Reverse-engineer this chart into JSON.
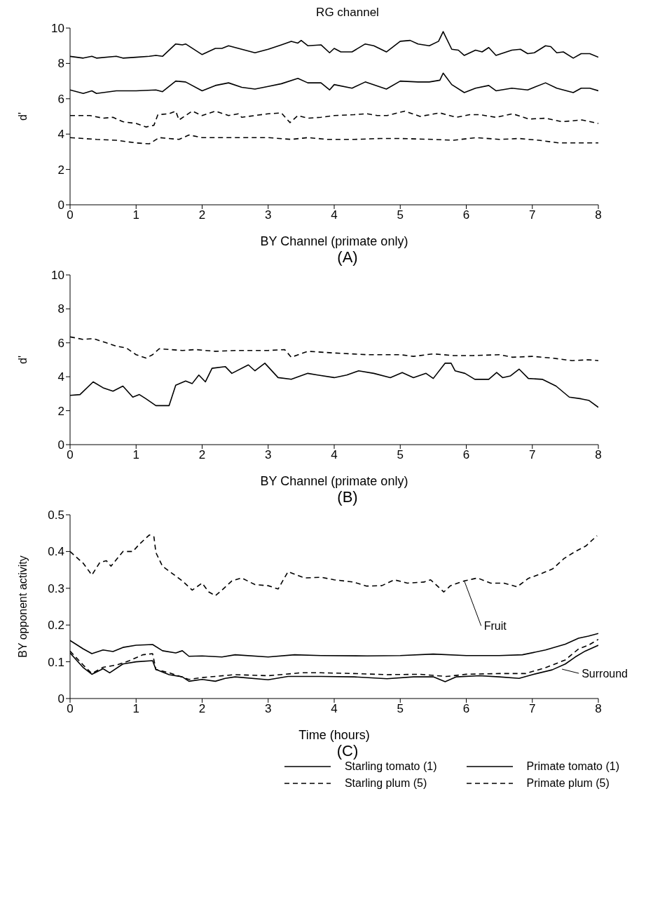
{
  "chart_data": [
    {
      "type": "line",
      "title": "RG channel",
      "xlabel": "BY Channel (primate only)",
      "ylabel": "d'",
      "annotations": [
        "(A)"
      ],
      "xlim": [
        0,
        8
      ],
      "xticks": [
        0,
        1,
        2,
        3,
        4,
        5,
        6,
        7,
        8
      ],
      "ylim": [
        0,
        10
      ],
      "yticks": [
        0,
        2,
        4,
        6,
        8,
        10
      ],
      "legend": "bottom",
      "marker": "none",
      "series": [
        {
          "name": "Starling tomato (1)",
          "color": "#000000",
          "line_style": "solid",
          "x": [
            0,
            0.2,
            0.33,
            0.4,
            0.7,
            0.8,
            1.0,
            1.2,
            1.3,
            1.4,
            1.6,
            1.7,
            1.75,
            2.0,
            2.2,
            2.3,
            2.4,
            2.6,
            2.8,
            3.0,
            3.2,
            3.35,
            3.45,
            3.5,
            3.6,
            3.8,
            3.93,
            4.0,
            4.1,
            4.27,
            4.47,
            4.6,
            4.79,
            5.0,
            5.15,
            5.27,
            5.44,
            5.58,
            5.65,
            5.78,
            5.88,
            5.97,
            6.14,
            6.24,
            6.34,
            6.45,
            6.69,
            6.82,
            6.93,
            7.03,
            7.2,
            7.28,
            7.37,
            7.47,
            7.62,
            7.74,
            7.87,
            8.0
          ],
          "values": [
            8.4,
            8.3,
            8.4,
            8.3,
            8.4,
            8.3,
            8.35,
            8.4,
            8.45,
            8.4,
            9.1,
            9.05,
            9.1,
            8.5,
            8.85,
            8.85,
            9.0,
            8.8,
            8.6,
            8.8,
            9.05,
            9.25,
            9.15,
            9.3,
            9.0,
            9.05,
            8.6,
            8.85,
            8.65,
            8.65,
            9.1,
            9.0,
            8.65,
            9.25,
            9.3,
            9.1,
            9.0,
            9.25,
            9.8,
            8.8,
            8.75,
            8.45,
            8.75,
            8.65,
            8.9,
            8.45,
            8.75,
            8.8,
            8.55,
            8.6,
            9.0,
            8.95,
            8.6,
            8.65,
            8.3,
            8.55,
            8.55,
            8.35
          ]
        },
        {
          "name": "Primate tomato (1)",
          "color": "#000000",
          "line_style": "solid",
          "x": [
            0,
            0.2,
            0.33,
            0.4,
            0.7,
            1.0,
            1.3,
            1.4,
            1.6,
            1.75,
            2.0,
            2.2,
            2.4,
            2.6,
            2.8,
            3.0,
            3.2,
            3.45,
            3.6,
            3.8,
            3.93,
            4.0,
            4.27,
            4.47,
            4.79,
            5.0,
            5.27,
            5.44,
            5.6,
            5.65,
            5.78,
            5.97,
            6.14,
            6.34,
            6.45,
            6.69,
            6.93,
            7.2,
            7.37,
            7.62,
            7.74,
            7.87,
            8.0
          ],
          "values": [
            6.5,
            6.3,
            6.45,
            6.3,
            6.45,
            6.45,
            6.5,
            6.4,
            7.0,
            6.95,
            6.45,
            6.75,
            6.9,
            6.65,
            6.55,
            6.7,
            6.85,
            7.15,
            6.9,
            6.9,
            6.5,
            6.8,
            6.6,
            6.95,
            6.55,
            7.0,
            6.95,
            6.95,
            7.05,
            7.45,
            6.8,
            6.35,
            6.6,
            6.75,
            6.45,
            6.6,
            6.5,
            6.9,
            6.6,
            6.35,
            6.6,
            6.6,
            6.45
          ]
        },
        {
          "name": "Starling plum (5)",
          "color": "#000000",
          "line_style": "dashed",
          "x": [
            0,
            0.3,
            0.5,
            0.65,
            0.8,
            1.0,
            1.15,
            1.27,
            1.33,
            1.5,
            1.6,
            1.65,
            1.85,
            2.0,
            2.2,
            2.4,
            2.55,
            2.6,
            3.0,
            3.2,
            3.33,
            3.45,
            3.6,
            3.8,
            4.0,
            4.3,
            4.5,
            4.65,
            4.8,
            5.07,
            5.3,
            5.6,
            5.85,
            6.05,
            6.2,
            6.45,
            6.7,
            6.95,
            7.2,
            7.45,
            7.75,
            8.0
          ],
          "values": [
            5.05,
            5.05,
            4.9,
            4.95,
            4.7,
            4.6,
            4.4,
            4.5,
            5.1,
            5.15,
            5.3,
            4.8,
            5.3,
            5.05,
            5.3,
            5.05,
            5.15,
            4.95,
            5.15,
            5.2,
            4.65,
            5.05,
            4.9,
            4.95,
            5.05,
            5.1,
            5.15,
            5.05,
            5.05,
            5.3,
            5.0,
            5.2,
            4.95,
            5.1,
            5.1,
            4.95,
            5.15,
            4.85,
            4.9,
            4.7,
            4.8,
            4.6
          ]
        },
        {
          "name": "Primate plum (5)",
          "color": "#000000",
          "line_style": "dashed",
          "x": [
            0,
            0.4,
            0.7,
            1.0,
            1.2,
            1.35,
            1.65,
            1.8,
            2.0,
            2.5,
            3.0,
            3.35,
            3.6,
            3.9,
            4.3,
            4.7,
            5.0,
            5.5,
            5.8,
            6.15,
            6.5,
            6.8,
            7.1,
            7.4,
            7.7,
            8.0
          ],
          "values": [
            3.8,
            3.7,
            3.65,
            3.5,
            3.45,
            3.8,
            3.7,
            3.95,
            3.8,
            3.8,
            3.8,
            3.7,
            3.8,
            3.7,
            3.7,
            3.75,
            3.75,
            3.7,
            3.65,
            3.8,
            3.7,
            3.75,
            3.65,
            3.5,
            3.5,
            3.5
          ]
        }
      ]
    },
    {
      "type": "line",
      "xlabel": "BY Channel (primate only)",
      "ylabel": "d'",
      "annotations": [
        "(B)"
      ],
      "xlim": [
        0,
        8
      ],
      "xticks": [
        0,
        1,
        2,
        3,
        4,
        5,
        6,
        7,
        8
      ],
      "ylim": [
        0,
        10
      ],
      "yticks": [
        0,
        2,
        4,
        6,
        8,
        10
      ],
      "marker": "none",
      "series": [
        {
          "color": "#000000",
          "line_style": "dashed",
          "x": [
            0,
            0.2,
            0.35,
            0.55,
            0.7,
            0.85,
            1.0,
            1.15,
            1.25,
            1.35,
            1.7,
            1.9,
            2.2,
            2.5,
            3.0,
            3.25,
            3.35,
            3.6,
            4.0,
            4.5,
            5.0,
            5.2,
            5.5,
            5.8,
            6.1,
            6.5,
            6.7,
            7.0,
            7.3,
            7.6,
            7.85,
            8.0
          ],
          "values": [
            6.35,
            6.2,
            6.25,
            6.0,
            5.8,
            5.7,
            5.3,
            5.1,
            5.3,
            5.65,
            5.55,
            5.6,
            5.5,
            5.55,
            5.55,
            5.6,
            5.15,
            5.5,
            5.4,
            5.3,
            5.3,
            5.2,
            5.35,
            5.25,
            5.25,
            5.3,
            5.15,
            5.2,
            5.1,
            4.95,
            5.0,
            4.95
          ]
        },
        {
          "color": "#000000",
          "line_style": "solid",
          "x": [
            0,
            0.15,
            0.35,
            0.5,
            0.65,
            0.8,
            0.95,
            1.05,
            1.15,
            1.3,
            1.5,
            1.6,
            1.75,
            1.85,
            1.95,
            2.05,
            2.15,
            2.35,
            2.45,
            2.7,
            2.8,
            2.95,
            3.15,
            3.35,
            3.6,
            3.75,
            4.0,
            4.19,
            4.37,
            4.6,
            4.85,
            5.03,
            5.2,
            5.39,
            5.5,
            5.68,
            5.77,
            5.83,
            5.98,
            6.13,
            6.34,
            6.46,
            6.55,
            6.67,
            6.8,
            6.94,
            7.15,
            7.36,
            7.56,
            7.74,
            7.86,
            8.0
          ],
          "values": [
            2.9,
            2.95,
            3.7,
            3.35,
            3.15,
            3.45,
            2.8,
            2.95,
            2.7,
            2.3,
            2.3,
            3.5,
            3.75,
            3.6,
            4.1,
            3.7,
            4.5,
            4.6,
            4.2,
            4.7,
            4.35,
            4.8,
            3.95,
            3.85,
            4.2,
            4.1,
            3.95,
            4.1,
            4.35,
            4.2,
            3.95,
            4.25,
            3.95,
            4.2,
            3.9,
            4.8,
            4.8,
            4.35,
            4.2,
            3.85,
            3.85,
            4.25,
            3.95,
            4.05,
            4.45,
            3.9,
            3.85,
            3.45,
            2.8,
            2.7,
            2.6,
            2.2
          ]
        }
      ]
    },
    {
      "type": "line",
      "xlabel": "Time (hours)",
      "ylabel": "BY opponent activity",
      "xlim": [
        0,
        8
      ],
      "xticks": [
        0,
        1,
        2,
        3,
        4,
        5,
        6,
        7,
        8
      ],
      "ylim": [
        0,
        0.5
      ],
      "yticks": [
        0,
        0.1,
        0.2,
        0.3,
        0.4,
        0.5
      ],
      "marker": "none",
      "annotations": [
        {
          "text": "Fruit",
          "x": 5.97,
          "y": 0.32
        },
        {
          "text": "Surround",
          "x": 7.45,
          "y": 0.08
        },
        "(C)"
      ],
      "series": [
        {
          "color": "#000000",
          "line_style": "dashed",
          "x": [
            0,
            0.2,
            0.33,
            0.45,
            0.55,
            0.62,
            0.8,
            0.95,
            1.05,
            1.2,
            1.27,
            1.3,
            1.4,
            1.55,
            1.7,
            1.85,
            2.0,
            2.1,
            2.2,
            2.3,
            2.45,
            2.6,
            2.8,
            3.0,
            3.15,
            3.3,
            3.55,
            3.8,
            4.0,
            4.29,
            4.49,
            4.72,
            4.91,
            5.11,
            5.36,
            5.46,
            5.66,
            5.76,
            5.97,
            6.17,
            6.37,
            6.57,
            6.77,
            6.94,
            7.14,
            7.31,
            7.48,
            7.65,
            7.81,
            7.98
          ],
          "values": [
            0.4,
            0.368,
            0.336,
            0.37,
            0.375,
            0.36,
            0.4,
            0.4,
            0.42,
            0.445,
            0.44,
            0.397,
            0.36,
            0.34,
            0.32,
            0.295,
            0.314,
            0.29,
            0.28,
            0.295,
            0.32,
            0.328,
            0.31,
            0.307,
            0.298,
            0.345,
            0.328,
            0.33,
            0.323,
            0.317,
            0.306,
            0.307,
            0.323,
            0.314,
            0.317,
            0.323,
            0.29,
            0.307,
            0.32,
            0.328,
            0.314,
            0.314,
            0.304,
            0.327,
            0.34,
            0.353,
            0.381,
            0.4,
            0.415,
            0.443
          ]
        },
        {
          "color": "#000000",
          "line_style": "solid",
          "x": [
            0,
            0.2,
            0.33,
            0.5,
            0.65,
            0.8,
            1.0,
            1.25,
            1.4,
            1.6,
            1.7,
            1.8,
            2.0,
            2.3,
            2.5,
            3.0,
            3.4,
            3.8,
            4.5,
            5.0,
            5.5,
            6.0,
            6.5,
            6.85,
            7.2,
            7.5,
            7.7,
            7.85,
            8.0
          ],
          "values": [
            0.158,
            0.135,
            0.122,
            0.132,
            0.128,
            0.139,
            0.145,
            0.147,
            0.13,
            0.124,
            0.13,
            0.115,
            0.116,
            0.113,
            0.119,
            0.113,
            0.119,
            0.117,
            0.116,
            0.117,
            0.121,
            0.117,
            0.117,
            0.119,
            0.132,
            0.148,
            0.164,
            0.17,
            0.177
          ]
        },
        {
          "color": "#000000",
          "line_style": "solid",
          "x": [
            0,
            0.2,
            0.33,
            0.5,
            0.6,
            0.8,
            1.0,
            1.25,
            1.3,
            1.5,
            1.7,
            1.8,
            2.0,
            2.2,
            2.35,
            2.5,
            3.0,
            3.3,
            3.8,
            4.3,
            4.8,
            5.2,
            5.5,
            5.68,
            5.85,
            6.2,
            6.5,
            6.8,
            7.0,
            7.3,
            7.5,
            7.65,
            7.8,
            8.0
          ],
          "values": [
            0.124,
            0.084,
            0.066,
            0.081,
            0.07,
            0.094,
            0.1,
            0.103,
            0.079,
            0.065,
            0.059,
            0.047,
            0.052,
            0.047,
            0.055,
            0.059,
            0.051,
            0.06,
            0.06,
            0.059,
            0.054,
            0.059,
            0.059,
            0.046,
            0.059,
            0.062,
            0.059,
            0.055,
            0.065,
            0.078,
            0.094,
            0.113,
            0.129,
            0.145
          ]
        },
        {
          "color": "#000000",
          "line_style": "dashed",
          "x": [
            0,
            0.2,
            0.33,
            0.5,
            0.7,
            0.9,
            1.1,
            1.25,
            1.3,
            1.5,
            1.8,
            2.0,
            2.5,
            3.0,
            3.5,
            3.8,
            4.3,
            4.8,
            5.3,
            5.7,
            6.0,
            6.5,
            6.9,
            7.2,
            7.5,
            7.7,
            7.85,
            8.0
          ],
          "values": [
            0.129,
            0.091,
            0.068,
            0.085,
            0.091,
            0.103,
            0.119,
            0.122,
            0.079,
            0.07,
            0.052,
            0.057,
            0.065,
            0.062,
            0.07,
            0.07,
            0.068,
            0.065,
            0.066,
            0.06,
            0.066,
            0.068,
            0.068,
            0.084,
            0.105,
            0.135,
            0.145,
            0.161
          ]
        }
      ]
    }
  ]
}
